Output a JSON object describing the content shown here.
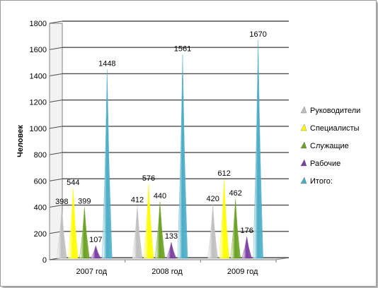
{
  "chart_data": {
    "type": "bar",
    "ylabel": "Человек",
    "ylim": [
      0,
      1800
    ],
    "yticks": [
      "0",
      "200",
      "400",
      "600",
      "800",
      "1000",
      "1200",
      "1400",
      "1600",
      "1800"
    ],
    "categories": [
      "2007 год",
      "2008 год",
      "2009 год"
    ],
    "legend_position": "right",
    "grid": true,
    "series": [
      {
        "name": "Руководители",
        "values": [
          398,
          412,
          420
        ],
        "color": "#c0c0c0"
      },
      {
        "name": "Специалисты",
        "values": [
          544,
          576,
          612
        ],
        "color": "#ffff00"
      },
      {
        "name": "Служащие",
        "values": [
          399,
          440,
          462
        ],
        "color": "#6aa121"
      },
      {
        "name": "Рабочие",
        "values": [
          107,
          133,
          176
        ],
        "color": "#7b3fa0"
      },
      {
        "name": "Итого:",
        "values": [
          1448,
          1561,
          1670
        ],
        "color": "#4bacc6"
      }
    ]
  }
}
